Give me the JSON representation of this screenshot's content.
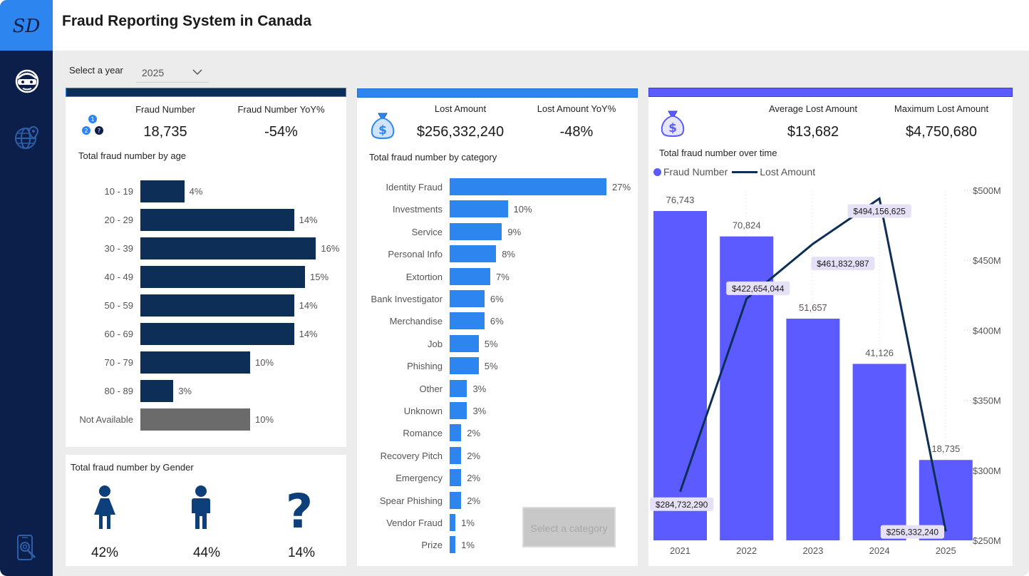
{
  "app": {
    "logo_text": "SD",
    "title": "Fraud Reporting System in Canada"
  },
  "sidebar": {
    "items": [
      {
        "icon": "thief-mask-icon"
      },
      {
        "icon": "globe-location-icon"
      },
      {
        "icon": "phone-search-icon"
      }
    ]
  },
  "filter": {
    "label": "Select a year",
    "value": "2025"
  },
  "fraud_panel": {
    "kpi1_label": "Fraud Number",
    "kpi1_value": "18,735",
    "kpi2_label": "Fraud Number YoY%",
    "kpi2_value": "-54%",
    "icon": "numbered-steps-icon",
    "chart_title": "Total fraud number by age"
  },
  "lost_panel": {
    "kpi1_label": "Lost Amount",
    "kpi1_value": "$256,332,240",
    "kpi2_label": "Lost Amount YoY%",
    "kpi2_value": "-48%",
    "icon": "money-bag-icon",
    "chart_title": "Total fraud number by category",
    "slicer_placeholder": "Select a category"
  },
  "trend_panel": {
    "kpi1_label": "Average Lost Amount",
    "kpi1_value": "$13,682",
    "kpi2_label": "Maximum Lost Amount",
    "kpi2_value": "$4,750,680",
    "icon": "money-bag-icon",
    "chart_title": "Total fraud number over time",
    "legend_bar": "Fraud Number",
    "legend_line": "Lost Amount"
  },
  "gender_panel": {
    "title": "Total fraud number by Gender",
    "items": [
      {
        "icon": "female-icon",
        "value": "42%"
      },
      {
        "icon": "male-icon",
        "value": "44%"
      },
      {
        "icon": "question-mark-icon",
        "value": "14%"
      }
    ]
  },
  "colors": {
    "sidebar": "#0b1f4a",
    "accent_blue": "#2d86f0",
    "age_bar": "#0d2f57",
    "age_na_bar": "#6b6b6b",
    "category_bar": "#2d86f0",
    "trend_bar": "#5b5bff",
    "trend_line": "#0d2f57"
  },
  "chart_data": [
    {
      "type": "bar",
      "orientation": "horizontal",
      "title": "Total fraud number by age",
      "categories": [
        "10 - 19",
        "20 - 29",
        "30 - 39",
        "40 - 49",
        "50 - 59",
        "60 - 69",
        "70 - 79",
        "80 - 89",
        "Not Available"
      ],
      "values": [
        4,
        14,
        16,
        15,
        14,
        14,
        10,
        3,
        10
      ],
      "labels": [
        "4%",
        "14%",
        "16%",
        "15%",
        "14%",
        "14%",
        "10%",
        "3%",
        "10%"
      ],
      "unit": "%"
    },
    {
      "type": "bar",
      "orientation": "horizontal",
      "title": "Total fraud number by category",
      "categories": [
        "Identity Fraud",
        "Investments",
        "Service",
        "Personal Info",
        "Extortion",
        "Bank Investigator",
        "Merchandise",
        "Job",
        "Phishing",
        "Other",
        "Unknown",
        "Romance",
        "Recovery Pitch",
        "Emergency",
        "Spear Phishing",
        "Vendor Fraud",
        "Prize"
      ],
      "values": [
        27,
        10,
        9,
        8,
        7,
        6,
        6,
        5,
        5,
        3,
        3,
        2,
        2,
        2,
        2,
        1,
        1
      ],
      "labels": [
        "27%",
        "10%",
        "9%",
        "8%",
        "7%",
        "6%",
        "6%",
        "5%",
        "5%",
        "3%",
        "3%",
        "2%",
        "2%",
        "2%",
        "2%",
        "1%",
        "1%"
      ],
      "unit": "%"
    },
    {
      "type": "bar",
      "title": "Total fraud number over time",
      "categories": [
        "2021",
        "2022",
        "2023",
        "2024",
        "2025"
      ],
      "series": [
        {
          "name": "Fraud Number",
          "type": "bar",
          "values": [
            76743,
            70824,
            51657,
            41126,
            18735
          ],
          "labels": [
            "76,743",
            "70,824",
            "51,657",
            "41,126",
            "18,735"
          ]
        },
        {
          "name": "Lost Amount",
          "type": "line",
          "values": [
            284732290,
            422654044,
            461832987,
            494156625,
            256332240
          ],
          "labels": [
            "$284,732,290",
            "$422,654,044",
            "$461,832,987",
            "$494,156,625",
            "$256,332,240"
          ]
        }
      ],
      "y2_ticks": [
        "$250M",
        "$300M",
        "$350M",
        "$400M",
        "$450M",
        "$500M"
      ],
      "y2lim": [
        250000000,
        500000000
      ],
      "ylim": [
        0,
        80000
      ],
      "legend": "top-left"
    }
  ]
}
